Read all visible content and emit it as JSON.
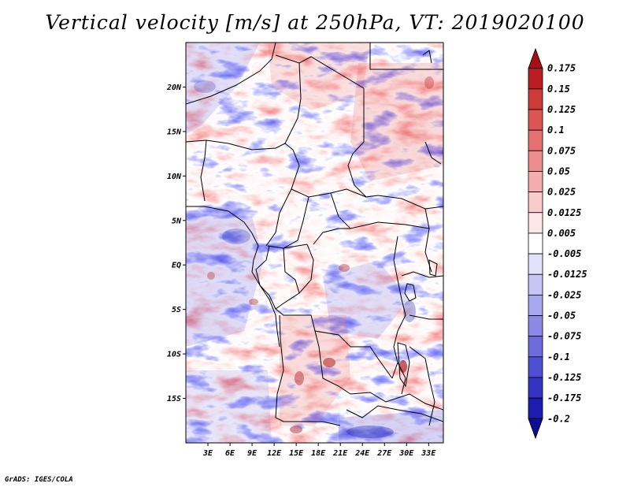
{
  "title": "Vertical velocity [m/s] at 250hPa, VT: 2019020100",
  "credit": "GrADS: IGES/COLA",
  "map": {
    "region": "Central Africa",
    "lon_range": [
      0,
      35
    ],
    "lat_range": [
      -20,
      25
    ],
    "lat_ticks": [
      {
        "value": 20,
        "label": "20N"
      },
      {
        "value": 15,
        "label": "15N"
      },
      {
        "value": 10,
        "label": "10N"
      },
      {
        "value": 5,
        "label": "5N"
      },
      {
        "value": 0,
        "label": "EQ"
      },
      {
        "value": -5,
        "label": "5S"
      },
      {
        "value": -10,
        "label": "10S"
      },
      {
        "value": -15,
        "label": "15S"
      }
    ],
    "lon_ticks": [
      {
        "value": 3,
        "label": "3E"
      },
      {
        "value": 6,
        "label": "6E"
      },
      {
        "value": 9,
        "label": "9E"
      },
      {
        "value": 12,
        "label": "12E"
      },
      {
        "value": 15,
        "label": "15E"
      },
      {
        "value": 18,
        "label": "18E"
      },
      {
        "value": 21,
        "label": "21E"
      },
      {
        "value": 24,
        "label": "24E"
      },
      {
        "value": 27,
        "label": "27E"
      },
      {
        "value": 30,
        "label": "30E"
      },
      {
        "value": 33,
        "label": "33E"
      }
    ]
  },
  "colorbar": {
    "units": "m/s",
    "labels": [
      "0.175",
      "0.15",
      "0.125",
      "0.1",
      "0.075",
      "0.05",
      "0.025",
      "0.0125",
      "0.005",
      "-0.005",
      "-0.0125",
      "-0.025",
      "-0.05",
      "-0.075",
      "-0.1",
      "-0.125",
      "-0.175",
      "-0.2"
    ],
    "colors": [
      "#a50f15",
      "#bb1e22",
      "#cd3a3a",
      "#dc5454",
      "#e66f6f",
      "#ee8d8d",
      "#f4adad",
      "#f9cbcb",
      "#fde6e6",
      "#ffffff",
      "#e2e2fb",
      "#c6c6f5",
      "#a8a8ee",
      "#8a8ae6",
      "#6c6cdd",
      "#4e4ed2",
      "#3434c3",
      "#1c1cad",
      "#0d0d94"
    ]
  }
}
